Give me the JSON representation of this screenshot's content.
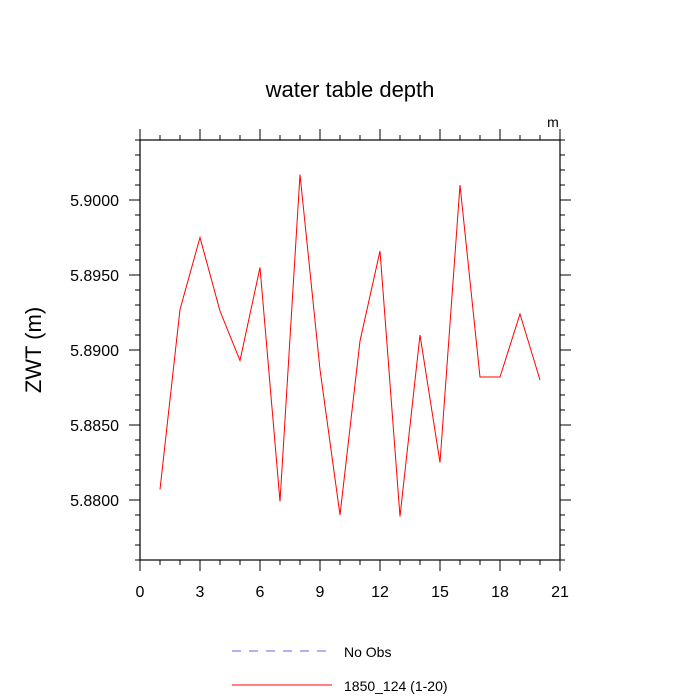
{
  "chart_data": {
    "type": "line",
    "title": "water table depth",
    "ylabel": "ZWT  (m)",
    "xlabel": "",
    "units_label": "m",
    "xlim": [
      0,
      21
    ],
    "ylim": [
      5.876,
      5.904
    ],
    "x_ticks": [
      0,
      3,
      6,
      9,
      12,
      15,
      18,
      21
    ],
    "x_tick_labels": [
      "0",
      "3",
      "6",
      "9",
      "12",
      "15",
      "18",
      "21"
    ],
    "y_ticks": [
      5.88,
      5.885,
      5.89,
      5.895,
      5.9
    ],
    "y_tick_labels": [
      "5.8800",
      "5.8850",
      "5.8900",
      "5.8950",
      "5.9000"
    ],
    "grid": false,
    "legend_placement": "bottom",
    "series": [
      {
        "name": "No Obs",
        "color": "#6666ee",
        "dash": "dashed",
        "x": [],
        "values": []
      },
      {
        "name": "1850_124 (1-20)",
        "color": "#ff0000",
        "dash": "solid",
        "x": [
          1,
          2,
          3,
          4,
          5,
          6,
          7,
          8,
          9,
          10,
          11,
          12,
          13,
          14,
          15,
          16,
          17,
          18,
          19,
          20
        ],
        "values": [
          5.8807,
          5.8927,
          5.8975,
          5.8926,
          5.8893,
          5.8955,
          5.8799,
          5.9017,
          5.8887,
          5.879,
          5.8906,
          5.8966,
          5.8789,
          5.891,
          5.8825,
          5.901,
          5.8882,
          5.8882,
          5.8924,
          5.888
        ]
      }
    ]
  }
}
